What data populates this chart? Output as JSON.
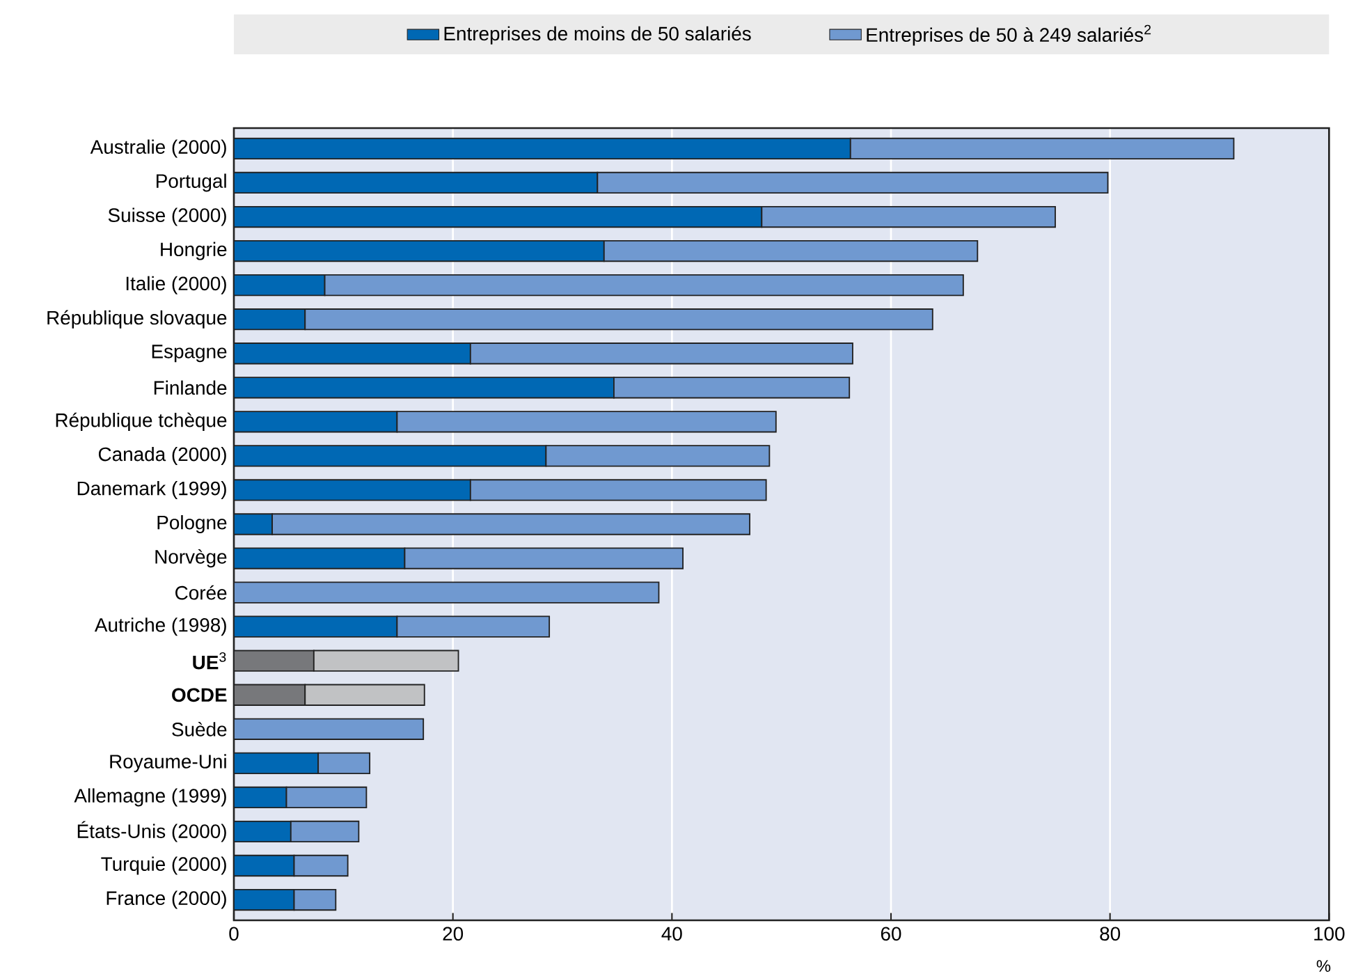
{
  "chart_data": {
    "type": "bar",
    "orientation": "horizontal",
    "stacked": true,
    "categories": [
      "Australie (2000)",
      "Portugal",
      "Suisse (2000)",
      "Hongrie",
      "Italie (2000)",
      "République slovaque",
      "Espagne",
      "Finlande",
      "République tchèque",
      "Canada (2000)",
      "Danemark (1999)",
      "Pologne",
      "Norvège",
      "Corée",
      "Autriche (1998)",
      "**UE**$^{3}$",
      "**OCDE**",
      "Suède",
      "Royaume-Uni",
      "Allemagne (1999)",
      "États-Unis (2000)",
      "Turquie (2000)",
      "France (2000)"
    ],
    "series": [
      {
        "name": "Entreprises de moins de 50 salariés",
        "color": "#0068b4",
        "colors": [
          "#0068b4",
          "#0068b4",
          "#0068b4",
          "#0068b4",
          "#0068b4",
          "#0068b4",
          "#0068b4",
          "#0068b4",
          "#0068b4",
          "#0068b4",
          "#0068b4",
          "#0068b4",
          "#0068b4",
          "#0068b4",
          "#0068b4",
          "#77787b",
          "#77787b",
          "#0068b4",
          "#0068b4",
          "#0068b4",
          "#0068b4",
          "#0068b4",
          "#0068b4"
        ],
        "values": [
          56.3,
          33.2,
          48.2,
          33.8,
          8.3,
          6.5,
          21.6,
          34.7,
          14.9,
          28.5,
          21.6,
          3.5,
          15.6,
          null,
          14.9,
          7.3,
          6.5,
          null,
          7.7,
          4.8,
          5.2,
          5.5,
          5.5
        ]
      },
      {
        "name": "Entreprises de 50 à 249 salariés$^{2}$",
        "color": "#7099d0",
        "colors": [
          "#7099d0",
          "#7099d0",
          "#7099d0",
          "#7099d0",
          "#7099d0",
          "#7099d0",
          "#7099d0",
          "#7099d0",
          "#7099d0",
          "#7099d0",
          "#7099d0",
          "#7099d0",
          "#7099d0",
          "#7099d0",
          "#7099d0",
          "#c1c2c4",
          "#c1c2c4",
          "#7099d0",
          "#7099d0",
          "#7099d0",
          "#7099d0",
          "#7099d0",
          "#7099d0"
        ],
        "values": [
          35.0,
          46.6,
          26.8,
          34.1,
          58.3,
          57.3,
          34.9,
          21.5,
          34.6,
          20.4,
          27.0,
          43.6,
          25.4,
          38.8,
          13.9,
          13.2,
          10.9,
          17.3,
          4.7,
          7.3,
          6.2,
          4.9,
          3.8
        ]
      }
    ],
    "xlim": [
      0,
      100
    ],
    "xticks": [
      0,
      20,
      40,
      60,
      80,
      100
    ],
    "xlabel": "%",
    "grid": "x",
    "legend": "top"
  }
}
